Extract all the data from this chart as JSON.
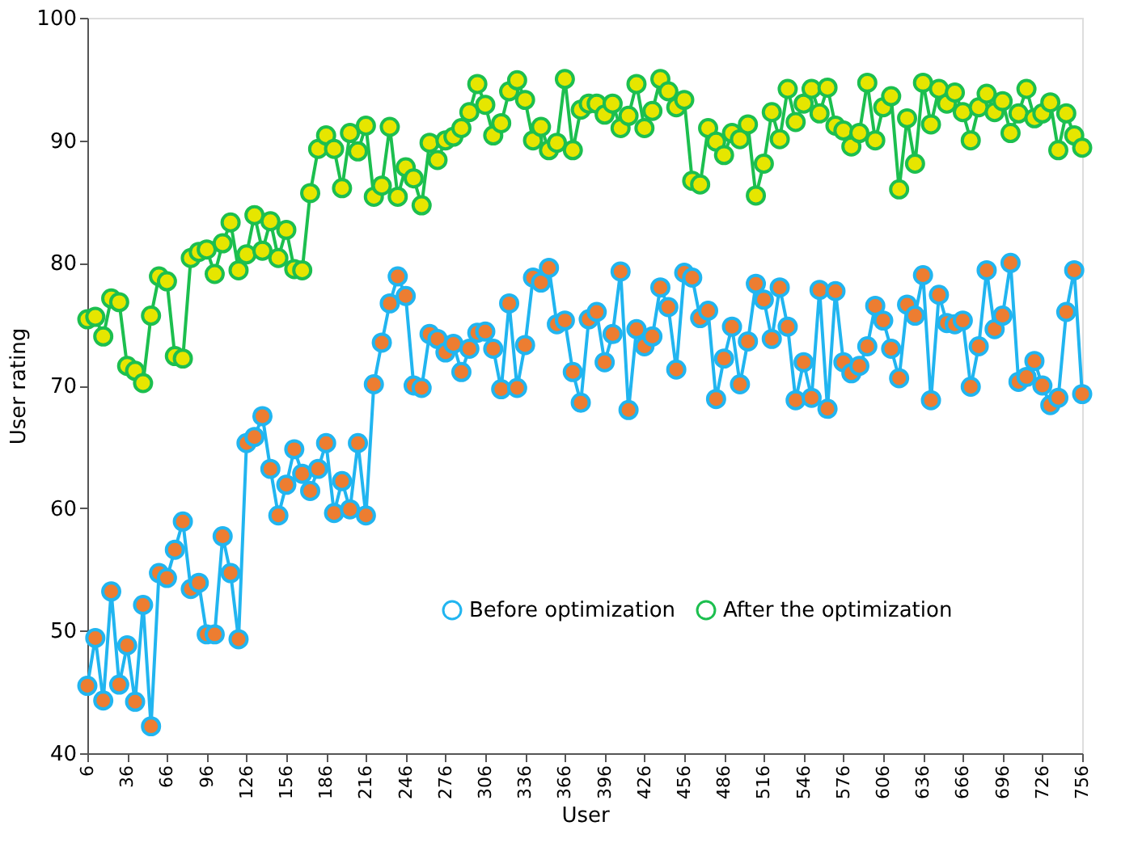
{
  "chart_data": {
    "type": "line",
    "xlabel": "User",
    "ylabel": "User rating",
    "x": [
      6,
      12,
      18,
      24,
      30,
      36,
      42,
      48,
      54,
      60,
      66,
      72,
      78,
      84,
      90,
      96,
      102,
      108,
      114,
      120,
      126,
      132,
      138,
      144,
      150,
      156,
      162,
      168,
      174,
      180,
      186,
      192,
      198,
      204,
      210,
      216,
      222,
      228,
      234,
      240,
      246,
      252,
      258,
      264,
      270,
      276,
      282,
      288,
      294,
      300,
      306,
      312,
      318,
      324,
      330,
      336,
      342,
      348,
      354,
      360,
      366,
      372,
      378,
      384,
      390,
      396,
      402,
      408,
      414,
      420,
      426,
      432,
      438,
      444,
      450,
      456,
      462,
      468,
      474,
      480,
      486,
      492,
      498,
      504,
      510,
      516,
      522,
      528,
      534,
      540,
      546,
      552,
      558,
      564,
      570,
      576,
      582,
      588,
      594,
      600,
      606,
      612,
      618,
      624,
      630,
      636,
      642,
      648,
      654,
      660,
      666,
      672,
      678,
      684,
      690,
      696,
      702,
      708,
      714,
      720,
      726,
      732,
      738,
      744,
      750,
      756
    ],
    "series": [
      {
        "name": "Before optimization",
        "color": "#21b5f0",
        "values": [
          45.5,
          49.4,
          44.3,
          53.2,
          45.6,
          48.8,
          44.2,
          52.1,
          42.2,
          54.7,
          54.3,
          56.6,
          58.9,
          53.4,
          53.9,
          49.7,
          49.7,
          57.7,
          54.7,
          49.3,
          65.3,
          65.8,
          67.5,
          63.2,
          59.4,
          61.9,
          64.8,
          62.8,
          61.4,
          63.2,
          65.3,
          59.6,
          62.2,
          59.9,
          65.3,
          59.4,
          70.1,
          73.5,
          76.7,
          78.9,
          77.3,
          70.0,
          69.8,
          74.2,
          73.8,
          72.7,
          73.4,
          71.1,
          73.0,
          74.3,
          74.4,
          73.0,
          69.7,
          76.7,
          69.8,
          73.3,
          78.8,
          78.4,
          79.6,
          75.0,
          75.3,
          71.1,
          68.6,
          75.4,
          76.0,
          71.9,
          74.2,
          79.3,
          68.0,
          74.6,
          73.2,
          74.0,
          78.0,
          76.4,
          71.3,
          79.2,
          78.8,
          75.5,
          76.1,
          68.9,
          72.2,
          74.8,
          70.1,
          73.6,
          78.3,
          77.0,
          73.8,
          78.0,
          74.8,
          68.8,
          71.9,
          69.0,
          77.8,
          68.1,
          77.7,
          71.9,
          71.0,
          71.6,
          73.2,
          76.5,
          75.3,
          73.0,
          70.6,
          76.6,
          75.7,
          79.0,
          68.8,
          77.4,
          75.1,
          75.0,
          75.3,
          69.9,
          73.2,
          79.4,
          74.6,
          75.7,
          80.0,
          70.3,
          70.7,
          72.0,
          70.0,
          68.4,
          69.0,
          76.0,
          79.4,
          69.3
        ]
      },
      {
        "name": "After the optimization",
        "color": "#1cbf4f",
        "values": [
          75.4,
          75.6,
          74.0,
          77.1,
          76.8,
          71.6,
          71.2,
          70.2,
          75.7,
          78.9,
          78.5,
          72.4,
          72.2,
          80.4,
          80.9,
          81.1,
          79.1,
          81.6,
          83.3,
          79.4,
          80.7,
          83.9,
          81.0,
          83.4,
          80.4,
          82.7,
          79.5,
          79.4,
          85.7,
          89.3,
          90.4,
          89.3,
          86.1,
          90.6,
          89.1,
          91.2,
          85.4,
          86.3,
          91.1,
          85.4,
          87.8,
          86.9,
          84.7,
          89.8,
          88.4,
          90.0,
          90.3,
          91.0,
          92.3,
          94.6,
          92.9,
          90.4,
          91.4,
          94.0,
          94.9,
          93.3,
          90.0,
          91.1,
          89.2,
          89.8,
          95.0,
          89.2,
          92.5,
          93.0,
          93.0,
          92.1,
          93.0,
          91.0,
          92.0,
          94.6,
          91.0,
          92.4,
          95.0,
          94.0,
          92.7,
          93.3,
          86.7,
          86.4,
          91.0,
          89.9,
          88.8,
          90.6,
          90.1,
          91.3,
          85.5,
          88.1,
          92.3,
          90.1,
          94.2,
          91.5,
          93.0,
          94.2,
          92.2,
          94.3,
          91.2,
          90.8,
          89.5,
          90.6,
          94.7,
          90.0,
          92.7,
          93.6,
          86.0,
          91.8,
          88.1,
          94.7,
          91.3,
          94.2,
          93.0,
          93.9,
          92.3,
          90.0,
          92.7,
          93.8,
          92.3,
          93.2,
          90.6,
          92.2,
          94.2,
          91.8,
          92.2,
          93.1,
          89.2,
          92.2,
          90.4,
          89.4
        ]
      }
    ],
    "xlim": [
      6,
      756
    ],
    "xticks": [
      6,
      36,
      66,
      96,
      126,
      156,
      186,
      216,
      246,
      276,
      306,
      336,
      366,
      396,
      426,
      456,
      486,
      516,
      546,
      576,
      606,
      636,
      666,
      696,
      726,
      756
    ],
    "ylim": [
      40,
      100
    ],
    "yticks": [
      40,
      50,
      60,
      70,
      80,
      90,
      100
    ],
    "grid": false,
    "legend": "bottom right",
    "marker": "circle",
    "line_style": "solid"
  }
}
